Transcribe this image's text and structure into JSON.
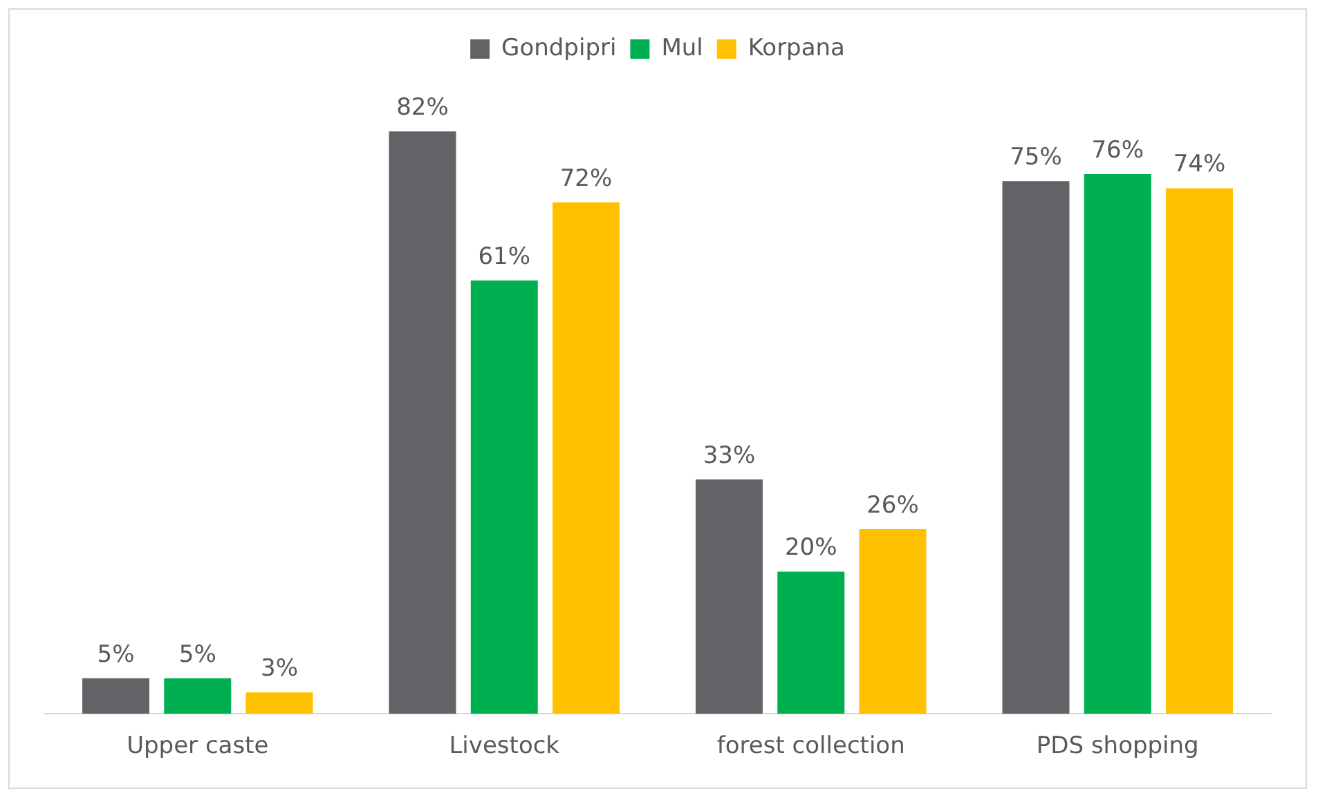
{
  "chart_data": {
    "type": "bar",
    "categories": [
      "Upper caste",
      "Livestock",
      "forest collection",
      "PDS shopping"
    ],
    "series": [
      {
        "name": "Gondpipri",
        "color": "#636266",
        "values": [
          5,
          82,
          33,
          75
        ],
        "value_labels": [
          "5%",
          "82%",
          "33%",
          "75%"
        ]
      },
      {
        "name": "Mul",
        "color": "#00b050",
        "values": [
          5,
          61,
          20,
          76
        ],
        "value_labels": [
          "5%",
          "61%",
          "20%",
          "76%"
        ]
      },
      {
        "name": "Korpana",
        "color": "#ffc000",
        "values": [
          3,
          72,
          26,
          74
        ],
        "value_labels": [
          "3%",
          "72%",
          "26%",
          "74%"
        ]
      }
    ],
    "legend": "top",
    "grid": false
  }
}
